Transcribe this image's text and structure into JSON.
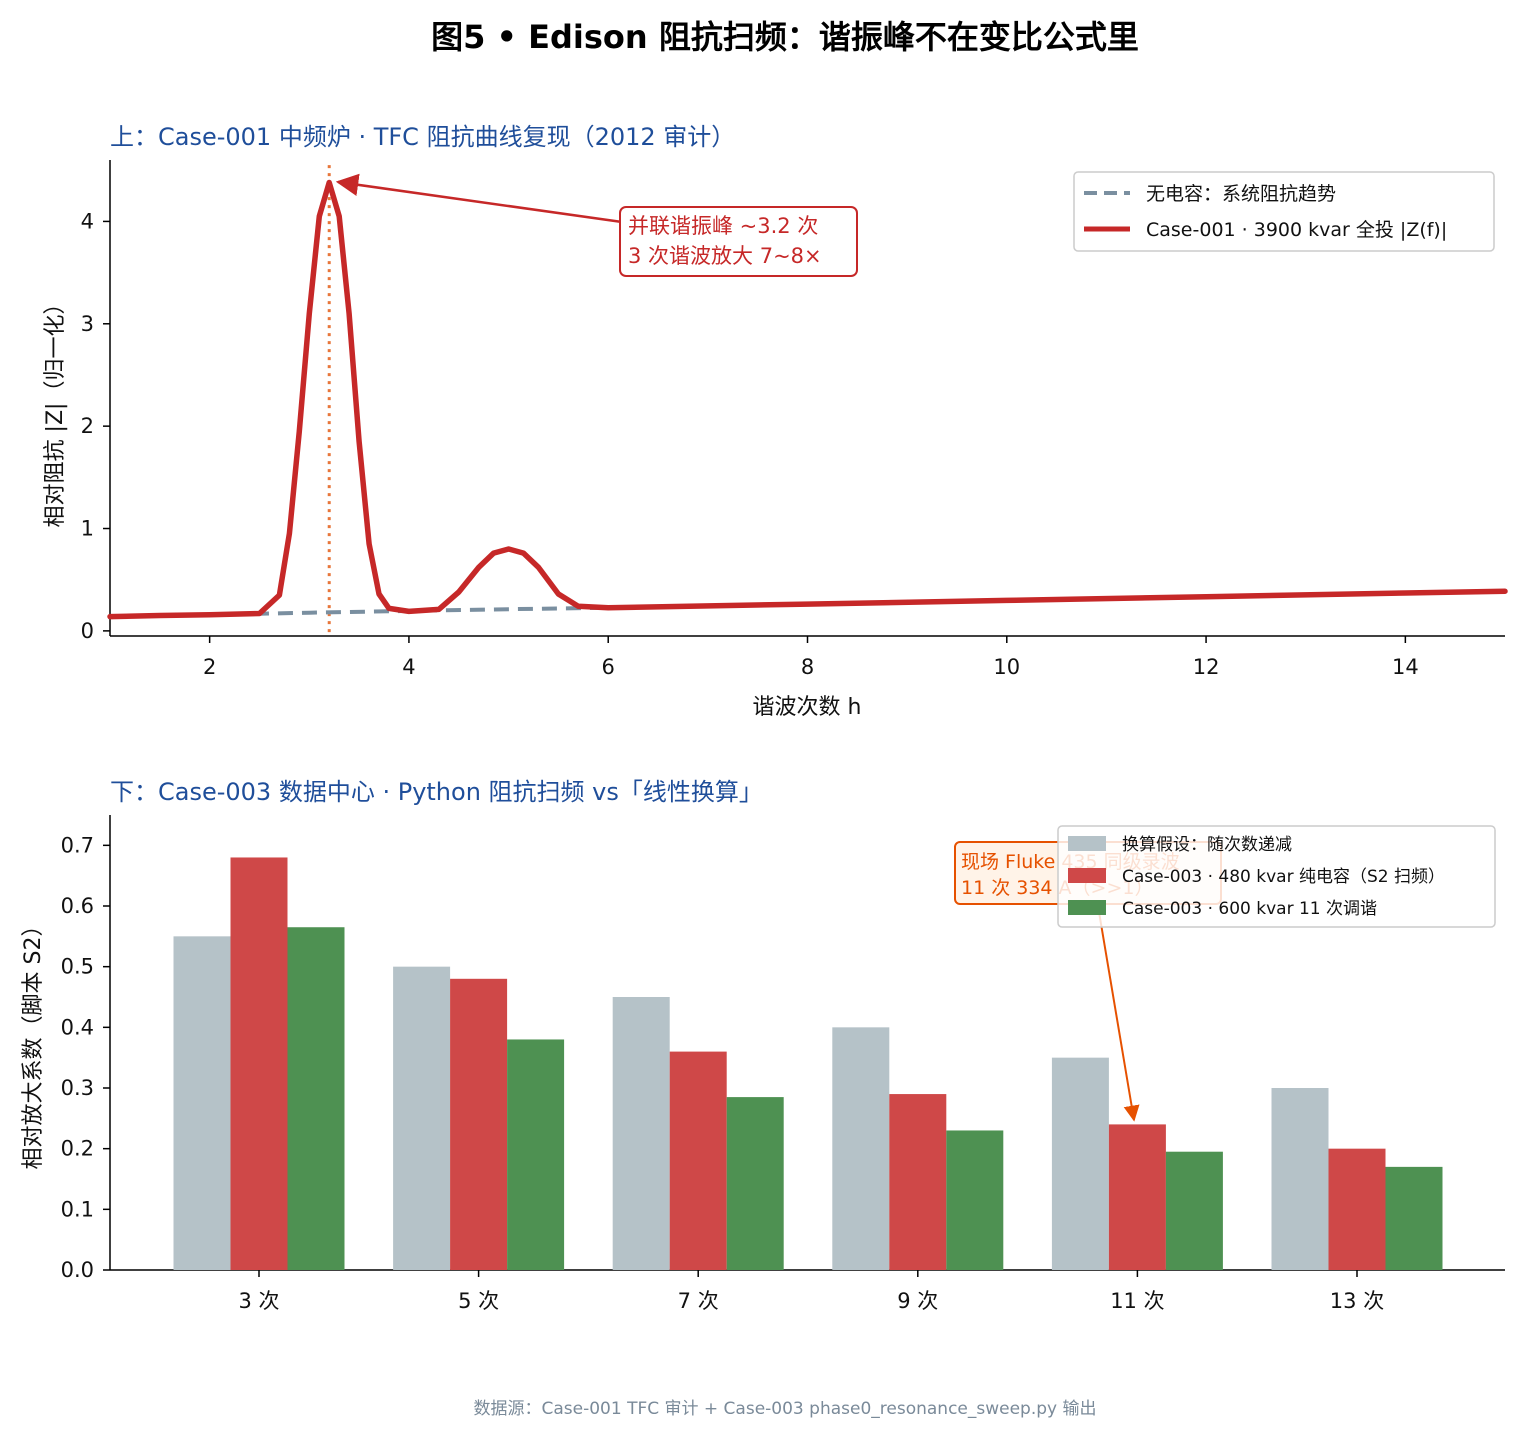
{
  "suptitle": "图5 • Edison 阻抗扫频：谐振峰不在变比公式里",
  "footer": "数据源：Case-001 TFC 审计 + Case-003 phase0_resonance_sweep.py 输出",
  "colors": {
    "red": "#c62828",
    "trend": "#7a8fa0",
    "marker": "#e8763a",
    "bar_assume": "#b5c2c8",
    "bar_cap": "#cf4848",
    "bar_tuned": "#4e9152",
    "title_blue": "#1f4e9a",
    "annot_orange": "#e65100"
  },
  "chart_data": [
    {
      "type": "line",
      "title": "上：Case-001 中频炉 · TFC 阻抗曲线复现（2012 审计）",
      "xlabel": "谐波次数 h",
      "ylabel": "相对阻抗 |Z|（归一化）",
      "xlim": [
        1,
        15
      ],
      "ylim": [
        -0.05,
        4.6
      ],
      "xticks": [
        2,
        4,
        6,
        8,
        10,
        12,
        14
      ],
      "yticks": [
        0,
        1,
        2,
        3,
        4
      ],
      "grid": false,
      "legend_position": "top-right",
      "series": [
        {
          "name": "无电容：系统阻抗趋势",
          "style": "dashed",
          "x": [
            1,
            2,
            3,
            4,
            5,
            6,
            8,
            10,
            12,
            14,
            15
          ],
          "y": [
            0.14,
            0.157,
            0.178,
            0.195,
            0.212,
            0.226,
            0.262,
            0.298,
            0.334,
            0.37,
            0.388
          ]
        },
        {
          "name": "Case-001 · 3900 kvar 全投 |Z(f)|",
          "style": "solid",
          "x": [
            1,
            1.5,
            2,
            2.5,
            2.7,
            2.8,
            2.9,
            3.0,
            3.1,
            3.2,
            3.3,
            3.4,
            3.5,
            3.6,
            3.7,
            3.8,
            4.0,
            4.3,
            4.5,
            4.7,
            4.85,
            5.0,
            5.15,
            5.3,
            5.5,
            5.7,
            6.0,
            8,
            10,
            12,
            14,
            15
          ],
          "y": [
            0.14,
            0.15,
            0.157,
            0.17,
            0.35,
            0.95,
            1.95,
            3.1,
            4.05,
            4.38,
            4.05,
            3.1,
            1.85,
            0.85,
            0.36,
            0.22,
            0.19,
            0.21,
            0.38,
            0.62,
            0.76,
            0.8,
            0.76,
            0.62,
            0.36,
            0.24,
            0.226,
            0.262,
            0.298,
            0.334,
            0.37,
            0.388
          ]
        }
      ],
      "vline": {
        "x": 3.2,
        "style": "dotted"
      },
      "annotation": {
        "lines": [
          "并联谐振峰 ~3.2 次",
          "3 次谐波放大 7~8×"
        ],
        "points_to": {
          "x": 3.2,
          "y": 4.38
        }
      }
    },
    {
      "type": "bar",
      "title": "下：Case-003 数据中心 · Python 阻抗扫频 vs「线性换算」",
      "xlabel": "",
      "ylabel": "相对放大系数（脚本 S2）",
      "categories": [
        "3 次",
        "5 次",
        "7 次",
        "9 次",
        "11 次",
        "13 次"
      ],
      "ylim": [
        0,
        0.75
      ],
      "yticks": [
        "0.0",
        "0.1",
        "0.2",
        "0.3",
        "0.4",
        "0.5",
        "0.6",
        "0.7"
      ],
      "grid": false,
      "legend_position": "top-right",
      "series": [
        {
          "name": "换算假设：随次数递减",
          "values": [
            0.55,
            0.5,
            0.45,
            0.4,
            0.35,
            0.3
          ]
        },
        {
          "name": "Case-003 · 480 kvar 纯电容（S2 扫频）",
          "values": [
            0.68,
            0.48,
            0.36,
            0.29,
            0.24,
            0.2
          ]
        },
        {
          "name": "Case-003 · 600 kvar 11 次调谐",
          "values": [
            0.565,
            0.38,
            0.285,
            0.23,
            0.195,
            0.17
          ]
        }
      ],
      "annotation": {
        "lines": [
          "现场 Fluke 435 同级录波",
          "11 次 334 A（>>1）"
        ],
        "points_to": {
          "category": "11 次",
          "series": 1
        }
      }
    }
  ]
}
